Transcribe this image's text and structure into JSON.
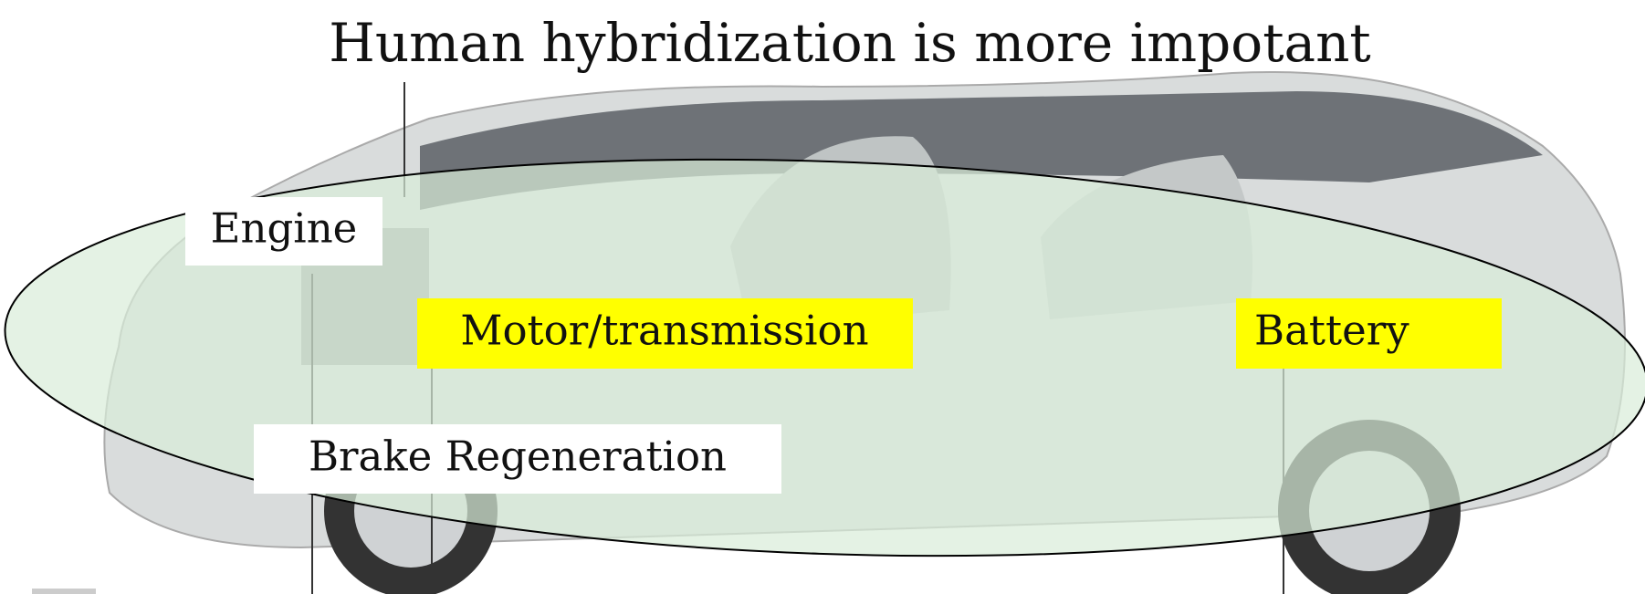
{
  "slide": {
    "title": "Human  hybridization is more impotant",
    "labels": {
      "engine": "Engine",
      "motor": "Motor/transmission",
      "battery": "Battery",
      "brake": "Brake  Regeneration"
    }
  }
}
